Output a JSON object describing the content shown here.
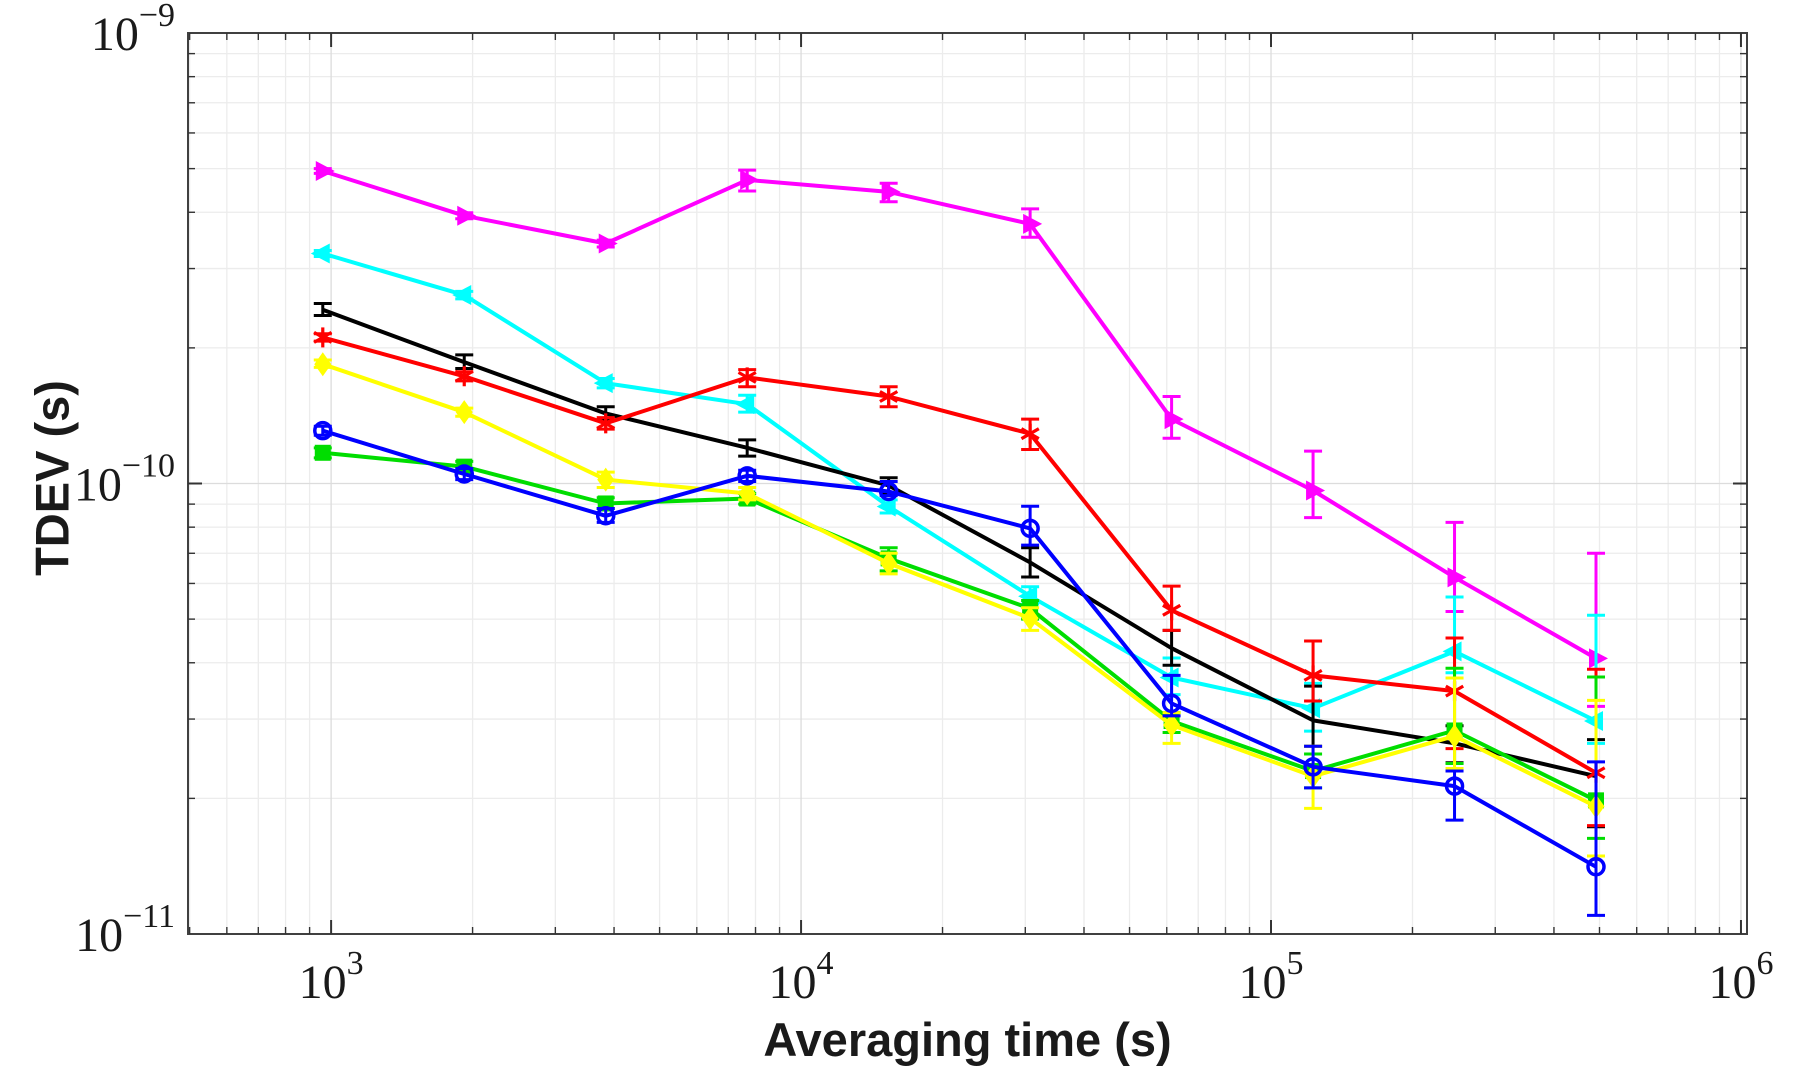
{
  "chart_data": {
    "type": "line",
    "title": "",
    "xlabel": "Averaging time (s)",
    "ylabel": "TDEV (s)",
    "x_scale": "log",
    "y_scale": "log",
    "xlim": [
      496,
      1030000
    ],
    "ylim": [
      1e-11,
      1e-09
    ],
    "grid": true,
    "legend": "none",
    "x_ticks": [
      {
        "value": 1000,
        "base": "10",
        "exp": "3"
      },
      {
        "value": 10000,
        "base": "10",
        "exp": "4"
      },
      {
        "value": 100000,
        "base": "10",
        "exp": "5"
      },
      {
        "value": 1000000,
        "base": "10",
        "exp": "6"
      }
    ],
    "y_ticks": [
      {
        "value": 1e-11,
        "base": "10",
        "exp": "−11"
      },
      {
        "value": 1e-10,
        "base": "10",
        "exp": "−10"
      },
      {
        "value": 1e-09,
        "base": "10",
        "exp": "−9"
      }
    ],
    "x": [
      960,
      1920,
      3840,
      7680,
      15360,
      30720,
      61440,
      122880,
      245760,
      491520
    ],
    "series": [
      {
        "name": "magenta",
        "color": "#FF00FF",
        "marker": "triangle-right",
        "values": [
          4.94e-10,
          3.93e-10,
          3.41e-10,
          4.72e-10,
          4.44e-10,
          3.77e-10,
          1.39e-10,
          9.65e-11,
          6.19e-11,
          4.09e-11
        ],
        "err_lo": [
          4.88e-10,
          3.87e-10,
          3.35e-10,
          4.46e-10,
          4.22e-10,
          3.52e-10,
          1.26e-10,
          8.4e-11,
          5.2e-11,
          3.2e-11
        ],
        "err_hi": [
          5e-10,
          3.99e-10,
          3.47e-10,
          4.96e-10,
          4.64e-10,
          4.07e-10,
          1.56e-10,
          1.18e-10,
          8.2e-11,
          7e-11
        ]
      },
      {
        "name": "cyan",
        "color": "#00FFFF",
        "marker": "triangle-left",
        "values": [
          3.24e-10,
          2.62e-10,
          1.67e-10,
          1.5e-10,
          8.89e-11,
          5.62e-11,
          3.71e-11,
          3.17e-11,
          4.24e-11,
          2.97e-11
        ],
        "err_lo": [
          3.19e-10,
          2.57e-10,
          1.63e-10,
          1.44e-10,
          8.6e-11,
          5.4e-11,
          3.4e-11,
          2.82e-11,
          3.8e-11,
          2.65e-11
        ],
        "err_hi": [
          3.29e-10,
          2.67e-10,
          1.71e-10,
          1.57e-10,
          9.2e-11,
          5.9e-11,
          4.1e-11,
          3.6e-11,
          5.6e-11,
          5.1e-11
        ]
      },
      {
        "name": "black",
        "color": "#000000",
        "marker": "none",
        "values": [
          2.43e-10,
          1.86e-10,
          1.43e-10,
          1.2e-10,
          9.9e-11,
          6.68e-11,
          4.31e-11,
          2.98e-11,
          2.65e-11,
          2.24e-11
        ],
        "err_lo": [
          2.36e-10,
          1.8e-10,
          1.38e-10,
          1.15e-10,
          9.5e-11,
          6.2e-11,
          3.95e-11,
          2.61e-11,
          2.4e-11,
          1.73e-11
        ],
        "err_hi": [
          2.51e-10,
          1.93e-10,
          1.48e-10,
          1.25e-10,
          1.03e-10,
          7.2e-11,
          4.72e-11,
          3.55e-11,
          2.9e-11,
          2.7e-11
        ]
      },
      {
        "name": "red",
        "color": "#FF0000",
        "marker": "asterisk",
        "values": [
          2.11e-10,
          1.73e-10,
          1.36e-10,
          1.72e-10,
          1.56e-10,
          1.29e-10,
          5.23e-11,
          3.75e-11,
          3.46e-11,
          2.28e-11
        ],
        "err_lo": [
          2.07e-10,
          1.69e-10,
          1.32e-10,
          1.64e-10,
          1.48e-10,
          1.19e-10,
          4.72e-11,
          3.29e-11,
          2.58e-11,
          1.74e-11
        ],
        "err_hi": [
          2.15e-10,
          1.77e-10,
          1.4e-10,
          1.79e-10,
          1.64e-10,
          1.39e-10,
          5.92e-11,
          4.47e-11,
          4.54e-11,
          3.87e-11
        ]
      },
      {
        "name": "green",
        "color": "#00DD00",
        "marker": "square",
        "values": [
          1.17e-10,
          1.09e-10,
          9.03e-11,
          9.26e-11,
          6.82e-11,
          5.28e-11,
          2.97e-11,
          2.3e-11,
          2.83e-11,
          1.98e-11
        ],
        "err_lo": [
          1.14e-10,
          1.06e-10,
          8.8e-11,
          9e-11,
          6.4e-11,
          5e-11,
          2.8e-11,
          2.11e-11,
          2.39e-11,
          1.63e-11
        ],
        "err_hi": [
          1.2e-10,
          1.12e-10,
          9.3e-11,
          9.5e-11,
          7.2e-11,
          5.5e-11,
          3.1e-11,
          2.51e-11,
          3.89e-11,
          3.72e-11
        ]
      },
      {
        "name": "yellow",
        "color": "#FFFF00",
        "marker": "diamond",
        "values": [
          1.84e-10,
          1.44e-10,
          1.02e-10,
          9.5e-11,
          6.65e-11,
          5.02e-11,
          2.91e-11,
          2.24e-11,
          2.75e-11,
          1.92e-11
        ],
        "err_lo": [
          1.81e-10,
          1.41e-10,
          9.8e-11,
          9.2e-11,
          6.3e-11,
          4.72e-11,
          2.65e-11,
          1.9e-11,
          2.33e-11,
          1.49e-11
        ],
        "err_hi": [
          1.88e-10,
          1.47e-10,
          1.06e-10,
          9.8e-11,
          7e-11,
          5.3e-11,
          3.1e-11,
          2.61e-11,
          3.7e-11,
          3.3e-11
        ]
      },
      {
        "name": "blue",
        "color": "#0000FF",
        "marker": "circle",
        "values": [
          1.31e-10,
          1.05e-10,
          8.48e-11,
          1.04e-10,
          9.6e-11,
          7.95e-11,
          3.25e-11,
          2.35e-11,
          2.13e-11,
          1.41e-11
        ],
        "err_lo": [
          1.28e-10,
          1.02e-10,
          8.2e-11,
          1.01e-10,
          9.4e-11,
          7.3e-11,
          3.05e-11,
          2.11e-11,
          1.79e-11,
          1.1e-11
        ],
        "err_hi": [
          1.34e-10,
          1.08e-10,
          8.8e-11,
          1.07e-10,
          1.01e-10,
          8.9e-11,
          3.75e-11,
          2.61e-11,
          2.3e-11,
          2.41e-11
        ]
      }
    ],
    "style": {
      "grid_major_color": "#dcdcdc",
      "grid_minor_color": "#ececec",
      "axis_box_color": "#404040",
      "tick_color": "#333333",
      "text_color": "#1a1a1a"
    }
  }
}
